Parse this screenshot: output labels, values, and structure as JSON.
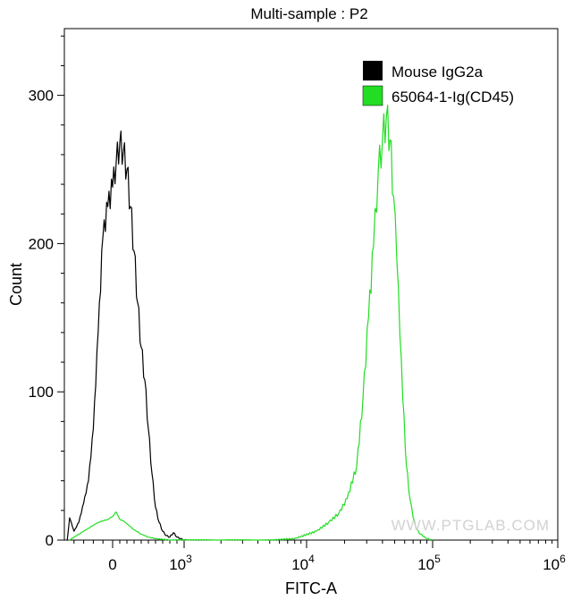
{
  "chart_data": {
    "type": "line",
    "title": "Multi-sample : P2",
    "xlabel": "FITC-A",
    "ylabel": "Count",
    "x_scale": "biexponential",
    "ylim": [
      0,
      345
    ],
    "xlim": [
      -500,
      1000000
    ],
    "y_ticks": [
      {
        "value": 0,
        "label": "0"
      },
      {
        "value": 100,
        "label": "100"
      },
      {
        "value": 200,
        "label": "200"
      },
      {
        "value": 300,
        "label": "300"
      }
    ],
    "x_ticks": [
      {
        "value": 0,
        "base": "0",
        "exp": ""
      },
      {
        "value": 1000,
        "base": "10",
        "exp": "3"
      },
      {
        "value": 10000,
        "base": "10",
        "exp": "4"
      },
      {
        "value": 100000,
        "base": "10",
        "exp": "5"
      },
      {
        "value": 1000000,
        "base": "10",
        "exp": "6"
      }
    ],
    "grid": false,
    "legend_position": "top-right",
    "watermark": "WWW.PTGLAB.COM",
    "series": [
      {
        "name": "Mouse IgG2a",
        "color": "#000000",
        "x": [
          -470,
          -445,
          -400,
          -350,
          -300,
          -250,
          -200,
          -150,
          -100,
          -50,
          0,
          50,
          100,
          150,
          200,
          250,
          300,
          350,
          400,
          450,
          500,
          550,
          600,
          650,
          700,
          750,
          800,
          850,
          900,
          950,
          1000,
          1050
        ],
        "y": [
          0,
          15,
          6,
          12,
          25,
          40,
          75,
          140,
          205,
          225,
          238,
          255,
          268,
          262,
          250,
          225,
          195,
          160,
          130,
          108,
          75,
          45,
          22,
          12,
          6,
          3,
          2,
          5,
          2,
          1,
          0,
          0
        ]
      },
      {
        "name": "65064-1-Ig(CD45)",
        "color": "#22dd22",
        "x": [
          -450,
          -350,
          -250,
          -150,
          -50,
          0,
          50,
          100,
          150,
          200,
          300,
          400,
          500,
          600,
          800,
          1000,
          5000,
          8000,
          12000,
          15000,
          18000,
          21000,
          25000,
          28000,
          31000,
          34000,
          37000,
          40000,
          43000,
          46000,
          49000,
          52000,
          55000,
          58000,
          62000,
          66000,
          70000,
          75000,
          80000,
          90000,
          100000
        ],
        "y": [
          0,
          4,
          8,
          12,
          14,
          16,
          19,
          14,
          13,
          11,
          7,
          4,
          2,
          1,
          0,
          0,
          0,
          1,
          6,
          12,
          18,
          28,
          50,
          95,
          150,
          198,
          248,
          270,
          286,
          270,
          232,
          188,
          138,
          95,
          50,
          28,
          15,
          7,
          4,
          1,
          0
        ]
      }
    ]
  }
}
